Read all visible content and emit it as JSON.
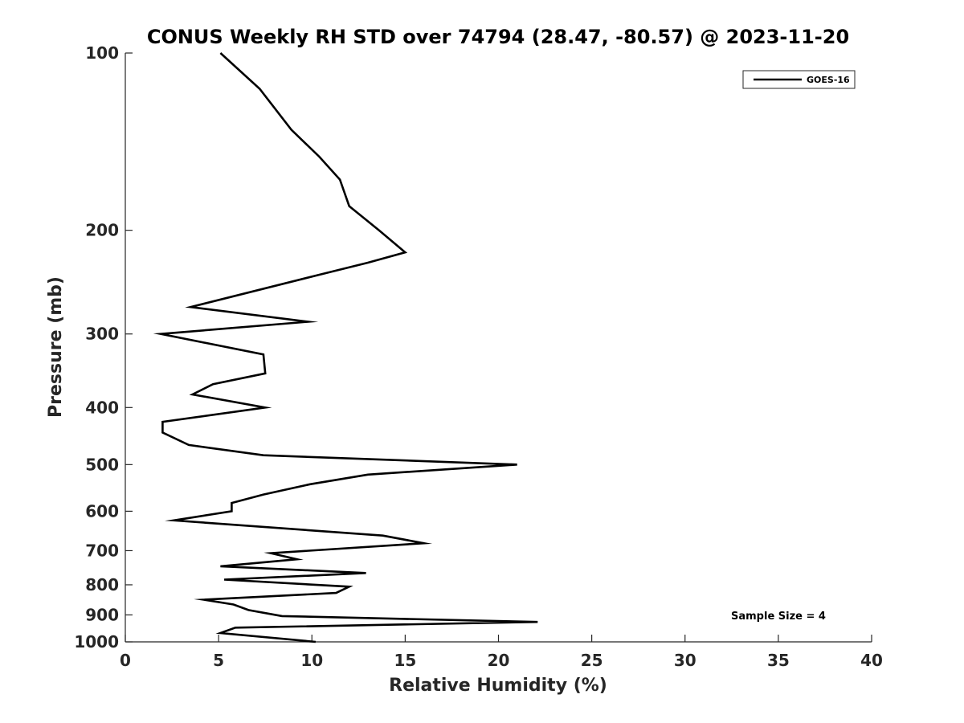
{
  "chart_data": {
    "type": "line",
    "title": "CONUS Weekly RH STD over 74794 (28.47, -80.57) @ 2023-11-20",
    "xlabel": "Relative Humidity (%)",
    "ylabel": "Pressure (mb)",
    "xlim": [
      0,
      40
    ],
    "ylim": [
      100,
      1000
    ],
    "y_scale": "log",
    "y_reversed": true,
    "grid": false,
    "legend_position": "top-right",
    "x_ticks": [
      "0",
      "5",
      "10",
      "15",
      "20",
      "25",
      "30",
      "35",
      "40"
    ],
    "y_ticks": [
      "100",
      "200",
      "300",
      "400",
      "500",
      "600",
      "700",
      "800",
      "900",
      "1000"
    ],
    "annotation": "Sample Size = 4",
    "series": [
      {
        "name": "GOES-16",
        "color": "#000000",
        "points": [
          [
            5.1,
            100
          ],
          [
            7.2,
            115
          ],
          [
            8.9,
            135
          ],
          [
            10.4,
            150
          ],
          [
            11.5,
            164
          ],
          [
            12.0,
            182
          ],
          [
            13.6,
            200
          ],
          [
            15.0,
            218
          ],
          [
            13.0,
            227
          ],
          [
            10.4,
            238
          ],
          [
            3.5,
            270
          ],
          [
            9.8,
            286
          ],
          [
            1.9,
            300
          ],
          [
            7.4,
            325
          ],
          [
            7.5,
            350
          ],
          [
            4.7,
            365
          ],
          [
            3.6,
            380
          ],
          [
            7.5,
            400
          ],
          [
            2.0,
            423
          ],
          [
            2.0,
            441
          ],
          [
            3.4,
            463
          ],
          [
            7.4,
            482
          ],
          [
            21.0,
            500
          ],
          [
            13.0,
            520
          ],
          [
            9.9,
            540
          ],
          [
            7.4,
            562
          ],
          [
            5.7,
            581
          ],
          [
            5.7,
            600
          ],
          [
            2.6,
            622
          ],
          [
            13.8,
            660
          ],
          [
            16.0,
            680
          ],
          [
            7.8,
            707
          ],
          [
            9.2,
            724
          ],
          [
            5.1,
            744
          ],
          [
            12.9,
            764
          ],
          [
            5.3,
            784
          ],
          [
            12.0,
            806
          ],
          [
            11.3,
            826
          ],
          [
            4.2,
            848
          ],
          [
            5.8,
            864
          ],
          [
            6.6,
            883
          ],
          [
            8.4,
            904
          ],
          [
            22.1,
            925
          ],
          [
            5.9,
            946
          ],
          [
            5.1,
            966
          ],
          [
            10.2,
            1000
          ]
        ]
      }
    ]
  }
}
